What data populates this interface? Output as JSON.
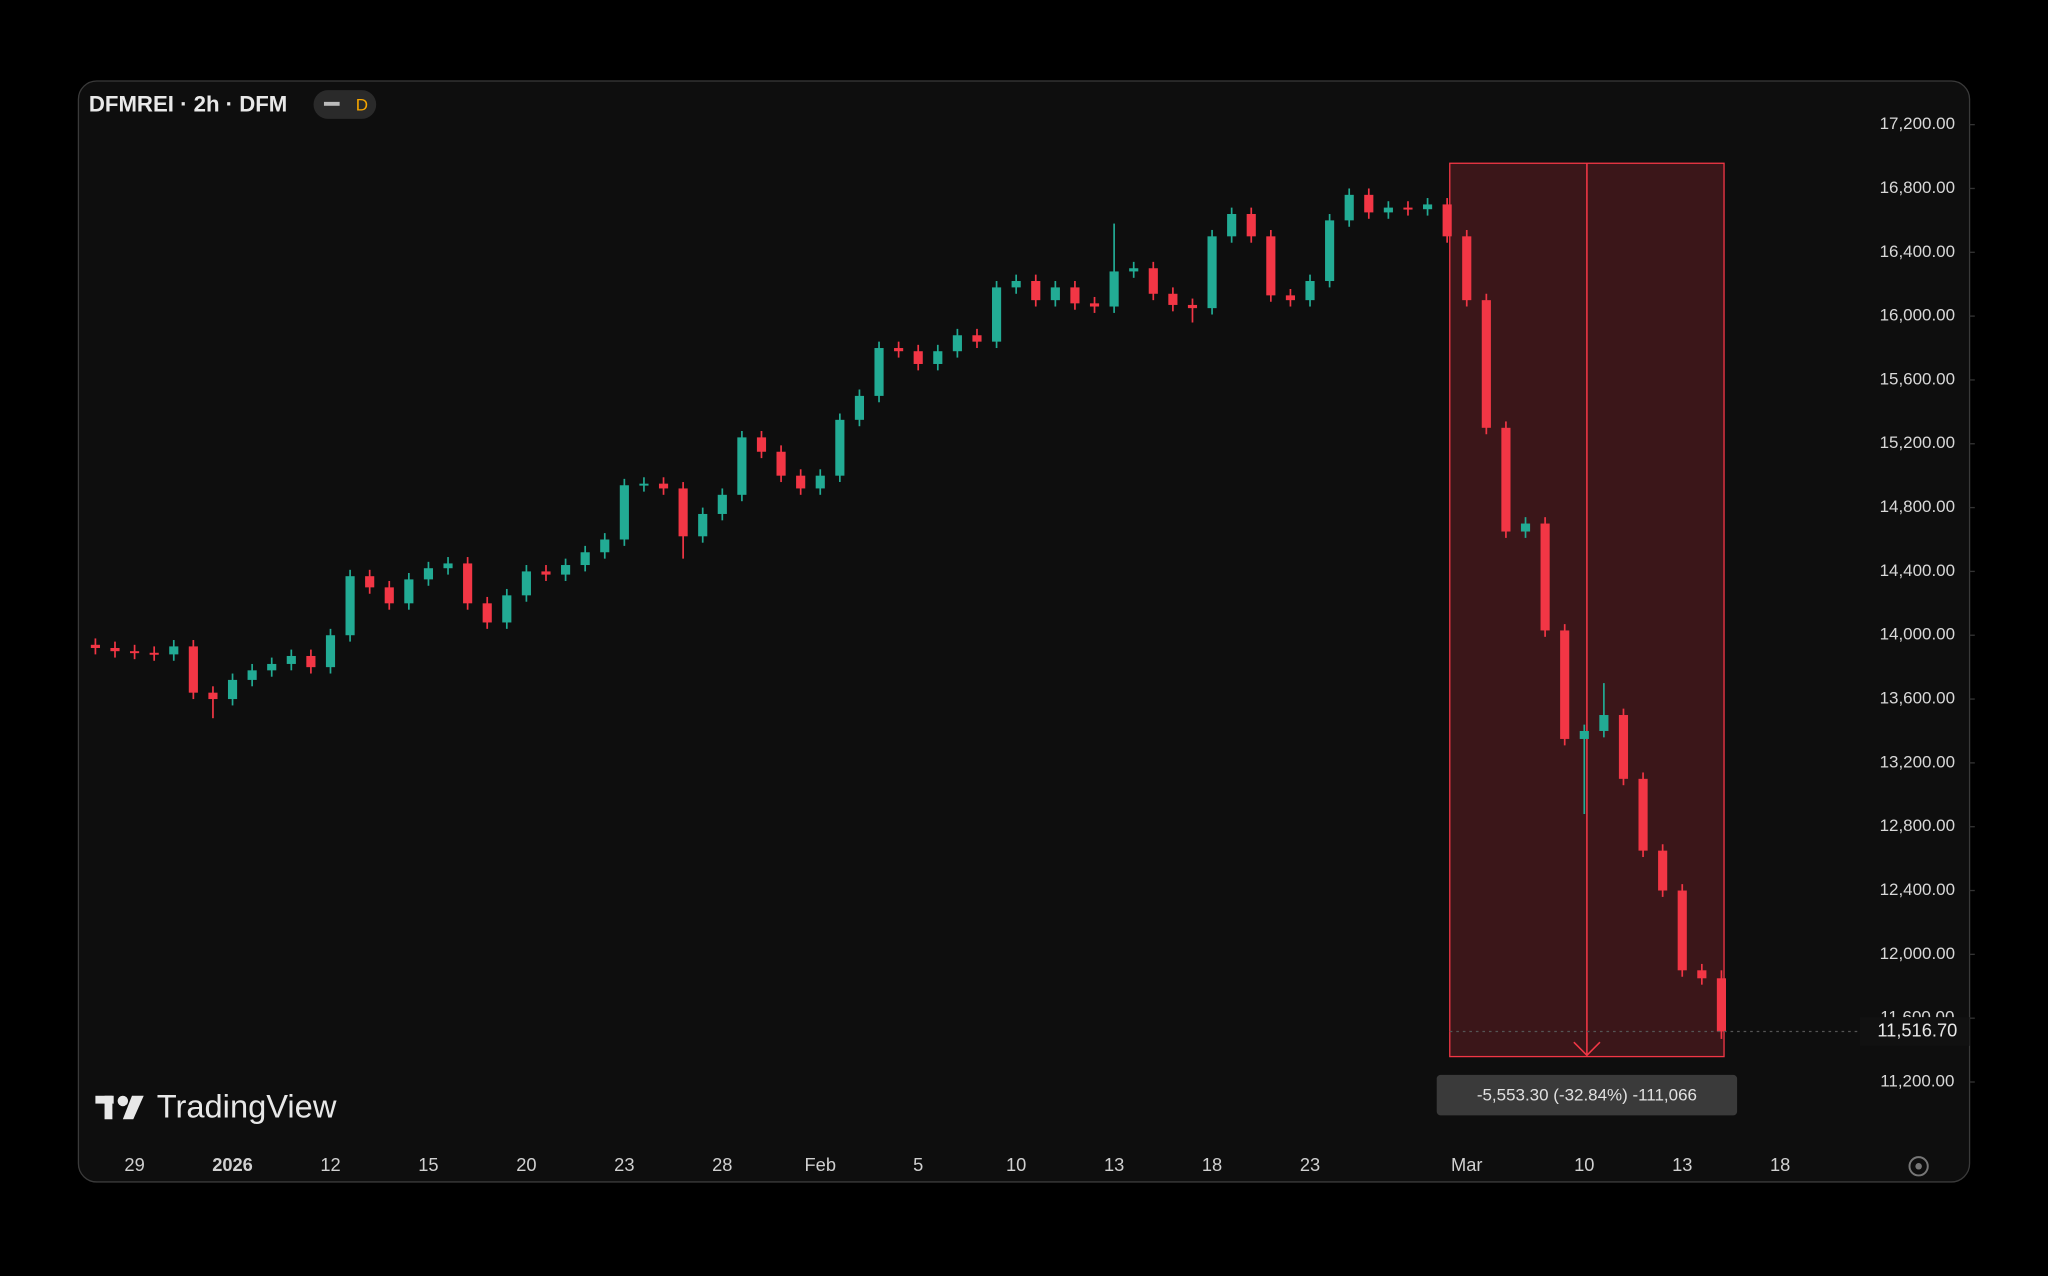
{
  "chart_data": {
    "type": "candlestick",
    "title": "DFMREI · 2h · DFM",
    "interval_badge": "D",
    "brand": "TradingView",
    "measure_label": "-5,553.30 (-32.84%) -111,066",
    "last_price": {
      "value": 11516.7,
      "label": "11,516.70"
    },
    "up_color": "#22ab94",
    "down_color": "#f23645",
    "ylim": [
      10860,
      17400
    ],
    "yticks": [
      {
        "value": 11200,
        "label": "11,200.00"
      },
      {
        "value": 11600,
        "label": "11,600.00"
      },
      {
        "value": 12000,
        "label": "12,000.00"
      },
      {
        "value": 12400,
        "label": "12,400.00"
      },
      {
        "value": 12800,
        "label": "12,800.00"
      },
      {
        "value": 13200,
        "label": "13,200.00"
      },
      {
        "value": 13600,
        "label": "13,600.00"
      },
      {
        "value": 14000,
        "label": "14,000.00"
      },
      {
        "value": 14400,
        "label": "14,400.00"
      },
      {
        "value": 14800,
        "label": "14,800.00"
      },
      {
        "value": 15200,
        "label": "15,200.00"
      },
      {
        "value": 15600,
        "label": "15,600.00"
      },
      {
        "value": 16000,
        "label": "16,000.00"
      },
      {
        "value": 16400,
        "label": "16,400.00"
      },
      {
        "value": 16800,
        "label": "16,800.00"
      },
      {
        "value": 17200,
        "label": "17,200.00"
      }
    ],
    "categories": [
      null,
      null,
      "29",
      null,
      null,
      null,
      null,
      "2026",
      null,
      null,
      null,
      null,
      "12",
      null,
      null,
      null,
      null,
      "15",
      null,
      null,
      null,
      null,
      "20",
      null,
      null,
      null,
      null,
      "23",
      null,
      null,
      null,
      null,
      "28",
      null,
      null,
      null,
      null,
      "Feb",
      null,
      null,
      null,
      null,
      "5",
      null,
      null,
      null,
      null,
      "10",
      null,
      null,
      null,
      null,
      "13",
      null,
      null,
      null,
      null,
      "18",
      null,
      null,
      null,
      null,
      "23",
      null,
      null,
      null,
      null,
      null,
      null,
      null,
      "Mar",
      null,
      null,
      null,
      null,
      null,
      "10",
      null,
      null,
      null,
      null,
      "13",
      null,
      null,
      null,
      null,
      "18",
      null
    ],
    "open": [
      13940,
      13920,
      13900,
      13890,
      13880,
      13930,
      13640,
      13600,
      13720,
      13780,
      13820,
      13870,
      13800,
      14000,
      14370,
      14300,
      14200,
      14350,
      14420,
      14450,
      14200,
      14080,
      14250,
      14400,
      14380,
      14440,
      14520,
      14600,
      14940,
      14950,
      14920,
      14620,
      14760,
      14880,
      15240,
      15150,
      15000,
      14920,
      15000,
      15350,
      15500,
      15800,
      15780,
      15700,
      15780,
      15880,
      15840,
      16180,
      16220,
      16100,
      16180,
      16080,
      16060,
      16280,
      16300,
      16140,
      16070,
      16050,
      16500,
      16640,
      16500,
      16130,
      16100,
      16220,
      16600,
      16760,
      16650,
      16680,
      16670,
      16700,
      16500,
      16100,
      15300,
      14650,
      14700,
      14030,
      13350,
      13400,
      13500,
      13100,
      12650,
      12400,
      11900,
      11850,
      null,
      null,
      null,
      null
    ],
    "high": [
      13980,
      13960,
      13940,
      13930,
      13970,
      13970,
      13680,
      13760,
      13820,
      13860,
      13910,
      13910,
      14040,
      14410,
      14410,
      14340,
      14390,
      14460,
      14490,
      14490,
      14240,
      14290,
      14440,
      14440,
      14480,
      14560,
      14640,
      14980,
      14990,
      14990,
      14960,
      14800,
      14920,
      15280,
      15280,
      15190,
      15040,
      15040,
      15390,
      15540,
      15840,
      15840,
      15820,
      15820,
      15920,
      15920,
      16220,
      16260,
      16260,
      16220,
      16220,
      16120,
      16580,
      16340,
      16340,
      16180,
      16110,
      16540,
      16680,
      16680,
      16540,
      16170,
      16260,
      16640,
      16800,
      16800,
      16720,
      16720,
      16740,
      16740,
      16540,
      16140,
      15340,
      14740,
      14740,
      14070,
      13440,
      13700,
      13540,
      13140,
      12690,
      12440,
      11940,
      11900,
      null,
      null,
      null,
      null
    ],
    "low": [
      13880,
      13860,
      13850,
      13840,
      13840,
      13600,
      13480,
      13560,
      13680,
      13740,
      13780,
      13760,
      13760,
      13960,
      14260,
      14160,
      14160,
      14310,
      14380,
      14160,
      14040,
      14040,
      14210,
      14340,
      14340,
      14400,
      14480,
      14560,
      14900,
      14880,
      14480,
      14580,
      14720,
      14840,
      15110,
      14960,
      14880,
      14880,
      14960,
      15310,
      15460,
      15740,
      15660,
      15660,
      15740,
      15800,
      15800,
      16140,
      16060,
      16060,
      16040,
      16020,
      16020,
      16240,
      16100,
      16030,
      15960,
      16010,
      16460,
      16460,
      16090,
      16060,
      16060,
      16180,
      16560,
      16610,
      16610,
      16630,
      16630,
      16460,
      16060,
      15260,
      14610,
      14610,
      13990,
      13310,
      12880,
      13360,
      13060,
      12610,
      12360,
      11860,
      11810,
      11470,
      null,
      null,
      null,
      null
    ],
    "close": [
      13920,
      13900,
      13890,
      13880,
      13930,
      13640,
      13600,
      13720,
      13780,
      13820,
      13870,
      13800,
      14000,
      14370,
      14300,
      14200,
      14350,
      14420,
      14450,
      14200,
      14080,
      14250,
      14400,
      14380,
      14440,
      14520,
      14600,
      14940,
      14950,
      14920,
      14620,
      14760,
      14880,
      15240,
      15150,
      15000,
      14920,
      15000,
      15350,
      15500,
      15800,
      15780,
      15700,
      15780,
      15880,
      15840,
      16180,
      16220,
      16100,
      16180,
      16080,
      16060,
      16280,
      16300,
      16140,
      16070,
      16050,
      16500,
      16640,
      16500,
      16130,
      16100,
      16220,
      16600,
      16760,
      16650,
      16680,
      16670,
      16700,
      16500,
      16100,
      15300,
      14650,
      14700,
      14030,
      13350,
      13400,
      13500,
      13100,
      12650,
      12400,
      11900,
      11850,
      11516.7,
      null,
      null,
      null,
      null
    ]
  }
}
